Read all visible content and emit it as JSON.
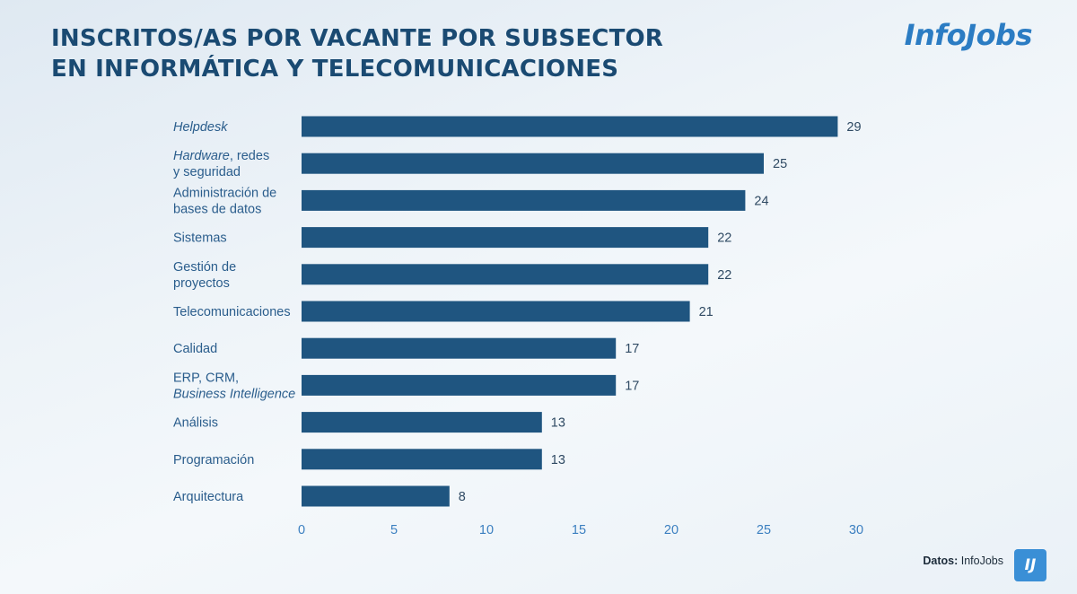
{
  "header": {
    "title_line1": "INSCRITOS/AS POR VACANTE POR SUBSECTOR",
    "title_line2": "EN INFORMÁTICA Y TELECOMUNICACIONES",
    "logo_text": "InfoJobs"
  },
  "footer": {
    "source_label": "Datos:",
    "source_value": "InfoJobs",
    "badge_text": "IJ"
  },
  "colors": {
    "bar": "#1f5580",
    "title": "#1a4a72",
    "logo": "#2b7cc3",
    "category_label": "#2a5d8c",
    "tick_label": "#3b7fc0"
  },
  "chart_data": {
    "type": "bar",
    "orientation": "horizontal",
    "title": "INSCRITOS/AS POR VACANTE POR SUBSECTOR EN INFORMÁTICA Y TELECOMUNICACIONES",
    "categories": [
      [
        {
          "t": "Helpdesk",
          "i": true
        }
      ],
      [
        {
          "t": "Hardware",
          "i": true
        },
        {
          "t": ", redes",
          "i": false
        },
        {
          "t": "\ny seguridad",
          "i": false
        }
      ],
      [
        {
          "t": "Administración de\nbases de datos",
          "i": false
        }
      ],
      [
        {
          "t": "Sistemas",
          "i": false
        }
      ],
      [
        {
          "t": "Gestión de\nproyectos",
          "i": false
        }
      ],
      [
        {
          "t": "Telecomunicaciones",
          "i": false
        }
      ],
      [
        {
          "t": "Calidad",
          "i": false
        }
      ],
      [
        {
          "t": "ERP, CRM,",
          "i": false
        },
        {
          "t": "\nBusiness Intelligence",
          "i": true
        }
      ],
      [
        {
          "t": "Análisis",
          "i": false
        }
      ],
      [
        {
          "t": "Programación",
          "i": false
        }
      ],
      [
        {
          "t": "Arquitectura",
          "i": false
        }
      ]
    ],
    "values": [
      29,
      25,
      24,
      22,
      22,
      21,
      17,
      17,
      13,
      13,
      8
    ],
    "value_labels": [
      "29",
      "25",
      "24",
      "22",
      "22",
      "21",
      "17",
      "17",
      "13",
      "13",
      "8"
    ],
    "xlim": [
      0,
      30
    ],
    "xticks": [
      0,
      5,
      10,
      15,
      20,
      25,
      30
    ],
    "xtick_labels": [
      "0",
      "5",
      "10",
      "15",
      "20",
      "25",
      "30"
    ],
    "grid": false,
    "legend": "none"
  }
}
